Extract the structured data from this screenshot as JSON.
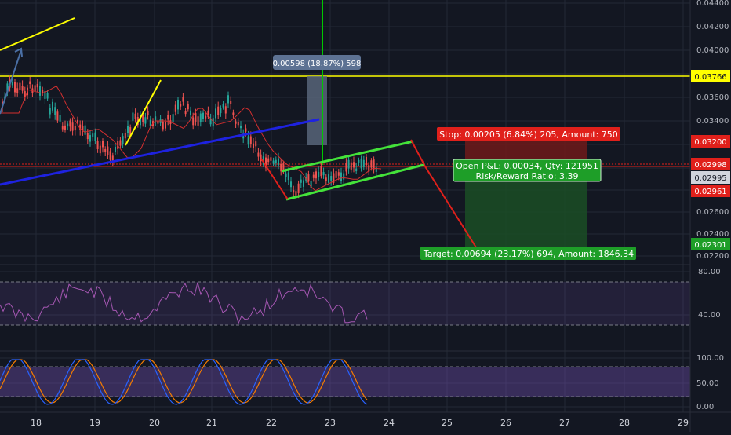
{
  "colors": {
    "background": "#131722",
    "grid": "#232836",
    "text": "#b2b5be",
    "up": "#26a69a",
    "down": "#ef5350",
    "ma": "#d32f2f",
    "support_line": "#1e22e0",
    "resistance_line": "#ffff00",
    "channel": "#44e23a",
    "rsi": "#a657b3",
    "stoch_k": "#2962ff",
    "stoch_d": "#f57c00",
    "stop_zone": "#6e1a1a",
    "target_zone": "#1b4d24",
    "label_red": "#e0201b",
    "label_green": "#1e9e28"
  },
  "price_scale": {
    "ticks": [
      "0.04400",
      "0.04200",
      "0.04000",
      "0.03600",
      "0.03400",
      "0.02600",
      "0.02400",
      "0.02200"
    ],
    "labels": [
      {
        "text": "0.03766",
        "bg": "#ffff00",
        "fg": "#131722"
      },
      {
        "text": "0.03200",
        "bg": "#e0201b",
        "fg": "#ffffff"
      },
      {
        "text": "0.02998",
        "bg": "#e0201b",
        "fg": "#ffffff"
      },
      {
        "text": "0.02995",
        "bg": "#d1d4dc",
        "fg": "#131722"
      },
      {
        "text": "0.02961",
        "bg": "#e0201b",
        "fg": "#ffffff"
      },
      {
        "text": "0.02301",
        "bg": "#1e9e28",
        "fg": "#ffffff"
      }
    ]
  },
  "rsi_scale": [
    "80.00",
    "40.00"
  ],
  "stoch_scale": [
    "100.00",
    "50.00",
    "0.00"
  ],
  "time_axis": [
    "18",
    "19",
    "20",
    "21",
    "22",
    "23",
    "24",
    "25",
    "26",
    "27",
    "28",
    "29"
  ],
  "annotations": {
    "measure": "0.00598 (18.87%) 598",
    "stop": "Stop: 0.00205 (6.84%) 205, Amount: 750",
    "open_pl": "Open P&L: 0.00034, Qty: 121951",
    "risk_reward": "Risk/Reward Ratio: 3.39",
    "target": "Target: 0.00694 (23.17%) 694, Amount: 1846.34"
  },
  "icons": [
    "measure-arrow-icon"
  ]
}
